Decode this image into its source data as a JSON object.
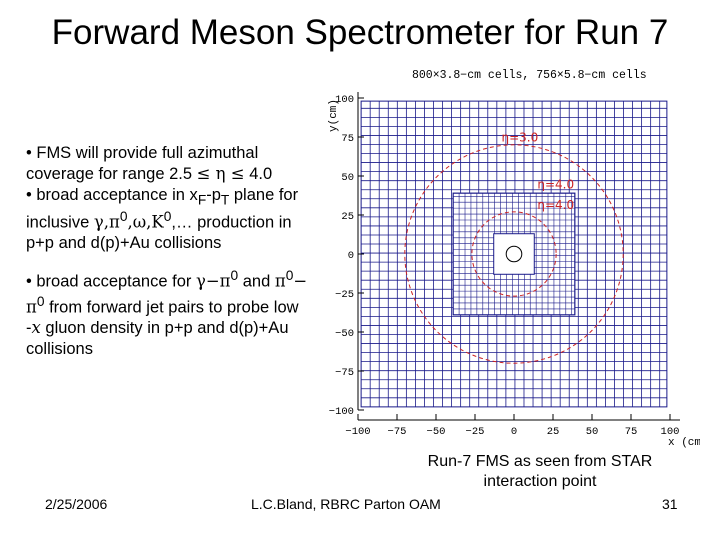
{
  "slide": {
    "title": "Forward Meson Spectrometer for Run 7",
    "bullet1_line1": "• FMS will provide full azimuthal",
    "bullet1_line2_pre": "coverage for range 2.5 ",
    "bullet1_sym1": "≤ η ≤",
    "bullet1_line2_post": " 4.0",
    "bullet2_line1_pre": "• broad acceptance in x",
    "bullet2_sub1": "F",
    "bullet2_dash": "-p",
    "bullet2_sub2": "T",
    "bullet2_line1_post": " plane for",
    "bullet2_line2_pre": "inclusive ",
    "bullet2_particles": "γ,π",
    "bullet2_sup": "0",
    "bullet2_particles2": ",ω,K",
    "bullet2_sup2": "0",
    "bullet2_line2_post": ",… production in",
    "bullet2_line3": "p+p and d(p)+Au collisions",
    "bullet3_line1_pre": "• broad acceptance for ",
    "bullet3_gp": "γ−π",
    "bullet3_sup1": "0",
    "bullet3_and": " and  ",
    "bullet3_pp": "π",
    "bullet3_sup2": "0",
    "bullet3_dash": "−",
    "bullet3_line2_pi": "π",
    "bullet3_line2_sup": "0",
    "bullet3_line2_post": " from forward jet pairs to probe low",
    "bullet3_line3_pre": "-",
    "bullet3_x": "x",
    "bullet3_line3_post": " gluon density in p+p and d(p)+Au",
    "bullet3_line4": "collisions",
    "caption_line1": "Run-7 FMS as seen from STAR",
    "caption_line2": "interaction point",
    "footer_date": "2/25/2006",
    "footer_author": "L.C.Bland, RBRC Parton OAM",
    "footer_page": "31"
  },
  "figure": {
    "header": "800×3.8−cm cells, 756×5.8−cm cells",
    "ylabel": "y(cm)",
    "xlabel": "x (cm)",
    "xlim": [
      -100,
      100
    ],
    "ylim": [
      -100,
      100
    ],
    "x_ticks": [
      {
        "v": -100,
        "t": "−100"
      },
      {
        "v": -75,
        "t": "−75"
      },
      {
        "v": -50,
        "t": "−50"
      },
      {
        "v": -25,
        "t": "−25"
      },
      {
        "v": 0,
        "t": "0"
      },
      {
        "v": 25,
        "t": "25"
      },
      {
        "v": 50,
        "t": "50"
      },
      {
        "v": 75,
        "t": "75"
      },
      {
        "v": 100,
        "t": "100"
      }
    ],
    "y_ticks": [
      {
        "v": 100,
        "t": "100"
      },
      {
        "v": 75,
        "t": "75"
      },
      {
        "v": 50,
        "t": "50"
      },
      {
        "v": 25,
        "t": "25"
      },
      {
        "v": 0,
        "t": "0"
      },
      {
        "v": -25,
        "t": "−25"
      },
      {
        "v": -50,
        "t": "−50"
      },
      {
        "v": -75,
        "t": "−75"
      },
      {
        "v": -100,
        "t": "−100"
      }
    ],
    "eta_labels": [
      {
        "text": "η=3.0",
        "r": 70
      },
      {
        "text": "η=4.0",
        "r": 27
      }
    ],
    "eta_label_inner_top": "η=4.0",
    "outer_cell_cm": 5.8,
    "inner_cell_cm": 3.8,
    "outer_half_cm": 98,
    "inner_half_cm": 39,
    "hole_half_cm": 13,
    "colors": {
      "grid": "#1a1a8a",
      "eta": "#cc2222",
      "axis": "#000000"
    }
  }
}
